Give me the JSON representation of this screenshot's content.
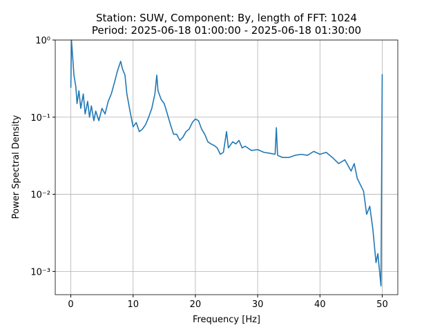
{
  "chart_data": {
    "type": "line",
    "title": [
      "Station: SUW, Component: By, length of FFT: 1024",
      "Period: 2025-06-18 01:00:00 - 2025-06-18 01:30:00"
    ],
    "xlabel": "Frequency [Hz]",
    "ylabel": "Power Spectral Density",
    "x": [
      0,
      0.1,
      0.3,
      0.5,
      0.8,
      1,
      1.3,
      1.6,
      2,
      2.3,
      2.7,
      3,
      3.3,
      3.7,
      4,
      4.5,
      5,
      5.5,
      6,
      6.5,
      7,
      7.5,
      8,
      8.3,
      8.7,
      9,
      9.5,
      10,
      10.5,
      11,
      11.5,
      12,
      12.5,
      13,
      13.5,
      13.8,
      14,
      14.5,
      15,
      15.5,
      16,
      16.5,
      17,
      17.5,
      18,
      18.5,
      19,
      19.5,
      20,
      20.5,
      21,
      21.5,
      22,
      22.5,
      23,
      23.5,
      24,
      24.5,
      25,
      25.3,
      26,
      26.5,
      27,
      27.5,
      28,
      29,
      30,
      31,
      32,
      32.8,
      33,
      33.2,
      34,
      35,
      36,
      37,
      38,
      39,
      40,
      41,
      42,
      43,
      44,
      45,
      45.5,
      46,
      47,
      47.5,
      48,
      48.5,
      49,
      49.3,
      49.8,
      50
    ],
    "values": [
      0.24,
      1.0,
      0.6,
      0.35,
      0.25,
      0.15,
      0.22,
      0.13,
      0.2,
      0.11,
      0.16,
      0.1,
      0.14,
      0.09,
      0.12,
      0.09,
      0.13,
      0.11,
      0.16,
      0.2,
      0.28,
      0.4,
      0.53,
      0.42,
      0.35,
      0.2,
      0.12,
      0.075,
      0.085,
      0.065,
      0.07,
      0.08,
      0.1,
      0.13,
      0.2,
      0.35,
      0.22,
      0.17,
      0.15,
      0.11,
      0.08,
      0.06,
      0.06,
      0.05,
      0.055,
      0.065,
      0.07,
      0.085,
      0.095,
      0.09,
      0.07,
      0.06,
      0.048,
      0.045,
      0.043,
      0.04,
      0.033,
      0.035,
      0.065,
      0.04,
      0.048,
      0.045,
      0.05,
      0.04,
      0.042,
      0.037,
      0.038,
      0.035,
      0.034,
      0.033,
      0.073,
      0.032,
      0.03,
      0.03,
      0.032,
      0.033,
      0.032,
      0.036,
      0.033,
      0.035,
      0.03,
      0.025,
      0.028,
      0.02,
      0.025,
      0.016,
      0.011,
      0.0055,
      0.007,
      0.0035,
      0.0013,
      0.0017,
      0.00065,
      0.36
    ],
    "color": "#1f77b4",
    "xlim": [
      -2.5,
      52.5
    ],
    "xticks": [
      0,
      10,
      20,
      30,
      40,
      50
    ],
    "ylim": [
      0.0005,
      1
    ],
    "log_y": true,
    "yticks": [
      {
        "value": 0.001,
        "label": "10⁻³"
      },
      {
        "value": 0.01,
        "label": "10⁻²"
      },
      {
        "value": 0.1,
        "label": "10⁻¹"
      },
      {
        "value": 1,
        "label": "10⁰"
      }
    ],
    "grid": true
  }
}
